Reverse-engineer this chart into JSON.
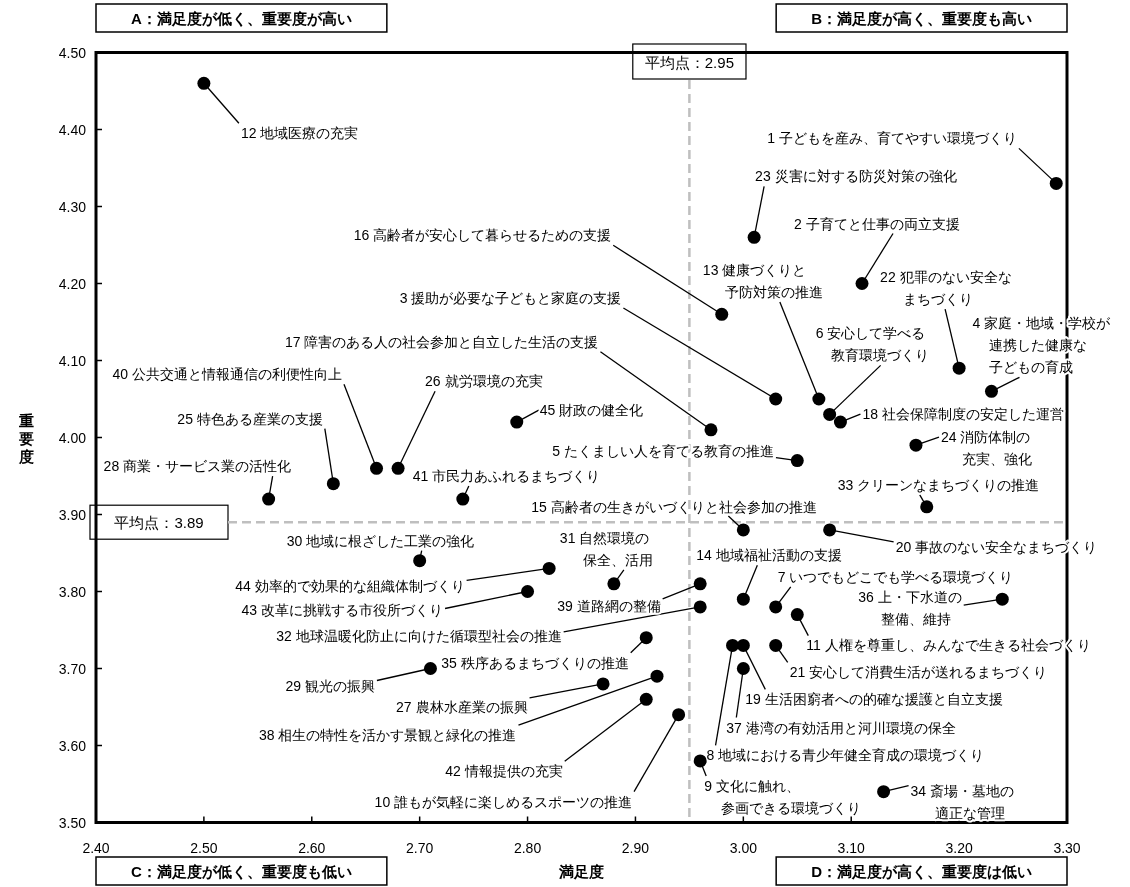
{
  "chart_data": {
    "type": "scatter",
    "xlabel": "満足度",
    "ylabel": "重要度",
    "marker": "circle",
    "xlim": [
      2.4,
      3.3
    ],
    "ylim": [
      3.5,
      4.5
    ],
    "xticks": [
      {
        "value": 2.4,
        "label": "2.40"
      },
      {
        "value": 2.5,
        "label": "2.50"
      },
      {
        "value": 2.6,
        "label": "2.60"
      },
      {
        "value": 2.7,
        "label": "2.70"
      },
      {
        "value": 2.8,
        "label": "2.80"
      },
      {
        "value": 2.9,
        "label": "2.90"
      },
      {
        "value": 3.0,
        "label": "3.00"
      },
      {
        "value": 3.1,
        "label": "3.10"
      },
      {
        "value": 3.2,
        "label": "3.20"
      },
      {
        "value": 3.3,
        "label": "3.30"
      }
    ],
    "yticks": [
      {
        "value": 3.5,
        "label": "3.50"
      },
      {
        "value": 3.6,
        "label": "3.60"
      },
      {
        "value": 3.7,
        "label": "3.70"
      },
      {
        "value": 3.8,
        "label": "3.80"
      },
      {
        "value": 3.9,
        "label": "3.90"
      },
      {
        "value": 4.0,
        "label": "4.00"
      },
      {
        "value": 4.1,
        "label": "4.10"
      },
      {
        "value": 4.2,
        "label": "4.20"
      },
      {
        "value": 4.3,
        "label": "4.30"
      },
      {
        "value": 4.4,
        "label": "4.40"
      },
      {
        "value": 4.5,
        "label": "4.50"
      }
    ],
    "x": [
      3.29,
      3.11,
      3.03,
      3.23,
      3.05,
      3.08,
      3.03,
      2.99,
      2.96,
      2.94,
      3.05,
      2.5,
      3.07,
      3.0,
      3.0,
      2.98,
      2.97,
      3.09,
      3.0,
      3.08,
      3.03,
      3.2,
      3.01,
      3.16,
      2.62,
      2.68,
      2.87,
      2.56,
      2.71,
      2.7,
      2.88,
      2.96,
      3.17,
      3.13,
      2.91,
      3.24,
      3.0,
      2.92,
      2.96,
      2.66,
      2.74,
      2.91,
      2.8,
      2.82,
      2.79
    ],
    "series": [
      {
        "color": "#000000",
        "values": [
          4.33,
          4.2,
          4.05,
          4.06,
          3.97,
          4.03,
          3.78,
          3.73,
          3.58,
          3.64,
          3.77,
          4.46,
          4.05,
          3.79,
          3.88,
          4.16,
          4.01,
          4.02,
          3.73,
          3.88,
          3.73,
          4.09,
          4.26,
          3.99,
          3.94,
          3.96,
          3.68,
          3.92,
          3.7,
          3.84,
          3.81,
          3.78,
          3.91,
          3.54,
          3.74,
          3.79,
          3.7,
          3.69,
          3.81,
          3.96,
          3.92,
          3.66,
          3.8,
          3.83,
          4.02
        ]
      }
    ],
    "ref_lines": [
      {
        "axis": "x",
        "value": 2.95,
        "label": "平均点：2.95",
        "color": "#bfbfbf",
        "line_style": "dashed"
      },
      {
        "axis": "y",
        "value": 3.89,
        "label": "平均点：3.89",
        "color": "#bfbfbf",
        "line_style": "dashed"
      }
    ],
    "annotations": [
      "A：満足度が低く、重要度が高い",
      "B：満足度が高く、重要度も高い",
      "C：満足度が低く、重要度も低い",
      "D：満足度が高く、重要度は低い",
      {
        "text": "1 子どもを産み、育てやすい環境づくり",
        "x": 3.29,
        "y": 4.33
      },
      {
        "text": "2 子育てと仕事の両立支援",
        "x": 3.11,
        "y": 4.2
      },
      {
        "text": "3 援助が必要な子どもと家庭の支援",
        "x": 3.03,
        "y": 4.05
      },
      {
        "text": "4 家庭・地域・学校が連携した健康な子どもの育成",
        "x": 3.23,
        "y": 4.06
      },
      {
        "text": "5 たくましい人を育てる教育の推進",
        "x": 3.05,
        "y": 3.97
      },
      {
        "text": "6 安心して学べる教育環境づくり",
        "x": 3.08,
        "y": 4.03
      },
      {
        "text": "7 いつでもどこでも学べる環境づくり",
        "x": 3.03,
        "y": 3.78
      },
      {
        "text": "8 地域における青少年健全育成の環境づくり",
        "x": 2.99,
        "y": 3.73
      },
      {
        "text": "9 文化に触れ、参画できる環境づくり",
        "x": 2.96,
        "y": 3.58
      },
      {
        "text": "10 誰もが気軽に楽しめるスポーツの推進",
        "x": 2.94,
        "y": 3.64
      },
      {
        "text": "11 人権を尊重し、みんなで生きる社会づくり",
        "x": 3.05,
        "y": 3.77
      },
      {
        "text": "12 地域医療の充実",
        "x": 2.5,
        "y": 4.46
      },
      {
        "text": "13 健康づくりと予防対策の推進",
        "x": 3.07,
        "y": 4.05
      },
      {
        "text": "14 地域福祉活動の支援",
        "x": 3.0,
        "y": 3.79
      },
      {
        "text": "15 高齢者の生きがいづくりと社会参加の推進",
        "x": 3.0,
        "y": 3.88
      },
      {
        "text": "16 高齢者が安心して暮らせるための支援",
        "x": 2.98,
        "y": 4.16
      },
      {
        "text": "17 障害のある人の社会参加と自立した生活の支援",
        "x": 2.97,
        "y": 4.01
      },
      {
        "text": "18 社会保障制度の安定した運営",
        "x": 3.09,
        "y": 4.02
      },
      {
        "text": "19 生活困窮者への的確な援護と自立支援",
        "x": 3.0,
        "y": 3.73
      },
      {
        "text": "20 事故のない安全なまちづくり",
        "x": 3.08,
        "y": 3.88
      },
      {
        "text": "21 安心して消費生活が送れるまちづくり",
        "x": 3.03,
        "y": 3.73
      },
      {
        "text": "22 犯罪のない安全なまちづくり",
        "x": 3.2,
        "y": 4.09
      },
      {
        "text": "23 災害に対する防災対策の強化",
        "x": 3.01,
        "y": 4.26
      },
      {
        "text": "24 消防体制の充実、強化",
        "x": 3.16,
        "y": 3.99
      },
      {
        "text": "25 特色ある産業の支援",
        "x": 2.62,
        "y": 3.94
      },
      {
        "text": "26 就労環境の充実",
        "x": 2.68,
        "y": 3.96
      },
      {
        "text": "27 農林水産業の振興",
        "x": 2.87,
        "y": 3.68
      },
      {
        "text": "28 商業・サービス業の活性化",
        "x": 2.56,
        "y": 3.92
      },
      {
        "text": "29 観光の振興",
        "x": 2.71,
        "y": 3.7
      },
      {
        "text": "30 地域に根ざした工業の強化",
        "x": 2.7,
        "y": 3.84
      },
      {
        "text": "31 自然環境の保全、活用",
        "x": 2.88,
        "y": 3.81
      },
      {
        "text": "32 地球温暖化防止に向けた循環型社会の推進",
        "x": 2.96,
        "y": 3.78
      },
      {
        "text": "33 クリーンなまちづくりの推進",
        "x": 3.17,
        "y": 3.91
      },
      {
        "text": "34 斎場・墓地の適正な管理",
        "x": 3.13,
        "y": 3.54
      },
      {
        "text": "35 秩序あるまちづくりの推進",
        "x": 2.91,
        "y": 3.74
      },
      {
        "text": "36 上・下水道の整備、維持",
        "x": 3.24,
        "y": 3.79
      },
      {
        "text": "37 港湾の有効活用と河川環境の保全",
        "x": 3.0,
        "y": 3.7
      },
      {
        "text": "38 相生の特性を活かす景観と緑化の推進",
        "x": 2.92,
        "y": 3.69
      },
      {
        "text": "39 道路網の整備",
        "x": 2.96,
        "y": 3.81
      },
      {
        "text": "40 公共交通と情報通信の利便性向上",
        "x": 2.66,
        "y": 3.96
      },
      {
        "text": "41 市民力あふれるまちづくり",
        "x": 2.74,
        "y": 3.92
      },
      {
        "text": "42 情報提供の充実",
        "x": 2.91,
        "y": 3.66
      },
      {
        "text": "43 改革に挑戦する市役所づくり",
        "x": 2.8,
        "y": 3.8
      },
      {
        "text": "44 効率的で効果的な組織体制づくり",
        "x": 2.82,
        "y": 3.83
      },
      {
        "text": "45 財政の健全化",
        "x": 2.79,
        "y": 4.02
      }
    ]
  }
}
